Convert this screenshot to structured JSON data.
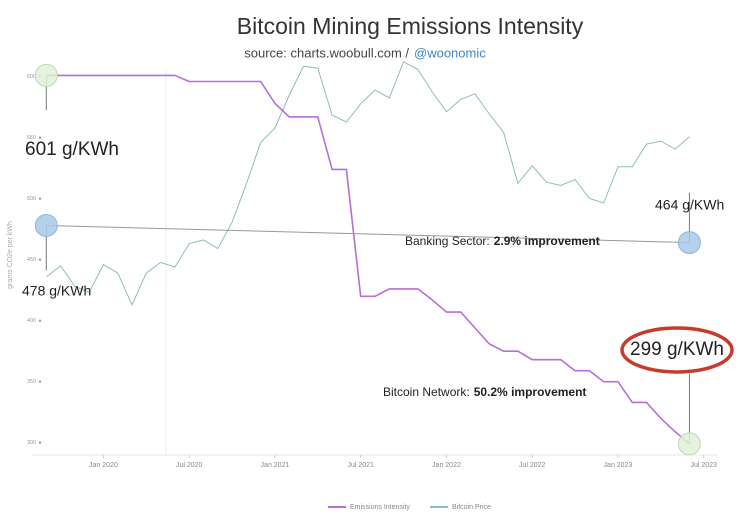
{
  "chart_data": {
    "type": "line",
    "title": "Bitcoin Mining Emissions Intensity",
    "subtitle": "source: charts.woobull.com /",
    "subtitle_handle": "@woonomic",
    "ylabel": "grams CO2e per kWh",
    "x": [
      "2019-09",
      "2019-10",
      "2019-11",
      "2019-12",
      "2020-01",
      "2020-02",
      "2020-03",
      "2020-04",
      "2020-05",
      "2020-06",
      "2020-07",
      "2020-08",
      "2020-09",
      "2020-10",
      "2020-11",
      "2020-12",
      "2021-01",
      "2021-02",
      "2021-03",
      "2021-04",
      "2021-05",
      "2021-06",
      "2021-07",
      "2021-08",
      "2021-09",
      "2021-10",
      "2021-11",
      "2021-12",
      "2022-01",
      "2022-02",
      "2022-03",
      "2022-04",
      "2022-05",
      "2022-06",
      "2022-07",
      "2022-08",
      "2022-09",
      "2022-10",
      "2022-11",
      "2022-12",
      "2023-01",
      "2023-02",
      "2023-03",
      "2023-04",
      "2023-05",
      "2023-06"
    ],
    "series": [
      {
        "name": "Emissions Intensity",
        "color": "#b56fd6",
        "values": [
          601,
          601,
          601,
          601,
          601,
          601,
          601,
          601,
          601,
          601,
          596,
          596,
          596,
          596,
          596,
          596,
          578,
          567,
          567,
          567,
          524,
          524,
          420,
          420,
          426,
          426,
          426,
          417,
          407,
          407,
          394,
          381,
          375,
          375,
          368,
          368,
          368,
          359,
          359,
          350,
          350,
          333,
          333,
          320,
          309,
          299
        ]
      },
      {
        "name": "Bitcoin Price",
        "color": "#8fbcbc",
        "axis": "y2",
        "values": [
          8300,
          9200,
          7600,
          7200,
          9300,
          8600,
          6400,
          8600,
          9500,
          9100,
          11300,
          11700,
          10800,
          13800,
          19700,
          29000,
          33100,
          45000,
          58800,
          57700,
          37300,
          35000,
          41500,
          47100,
          43800,
          61300,
          57000,
          46300,
          38500,
          43200,
          45500,
          37700,
          31800,
          19800,
          23300,
          20000,
          19400,
          20500,
          17200,
          16500,
          23100,
          23100,
          28500,
          29300,
          27200,
          30500
        ]
      }
    ],
    "xlim": [
      "2019-08",
      "2023-08"
    ],
    "xticks": [
      {
        "value": "2020-01",
        "label": "Jan 2020"
      },
      {
        "value": "2020-07",
        "label": "Jul 2020"
      },
      {
        "value": "2021-01",
        "label": "Jan 2021"
      },
      {
        "value": "2021-07",
        "label": "Jul 2021"
      },
      {
        "value": "2022-01",
        "label": "Jan 2022"
      },
      {
        "value": "2022-07",
        "label": "Jul 2022"
      },
      {
        "value": "2023-01",
        "label": "Jan 2023"
      },
      {
        "value": "2023-07",
        "label": "Jul 2023"
      }
    ],
    "ylim": [
      285,
      630
    ],
    "yticks": [
      300,
      350,
      400,
      450,
      500,
      550,
      600
    ],
    "y2lim": [
      1500,
      75000
    ],
    "y2scale": "log",
    "annotations": [
      {
        "label": "601 g/KWh",
        "value": 601,
        "x": "2019-09"
      },
      {
        "label": "478 g/KWh",
        "value": 478,
        "x": "2019-09"
      },
      {
        "label": "464 g/KWh",
        "value": 464,
        "x": "2023-06"
      },
      {
        "label": "299 g/KWh",
        "value": 299,
        "x": "2023-06"
      }
    ],
    "notes": [
      {
        "text": "Banking Sector:",
        "emphasis": "2.9% improvement"
      },
      {
        "text": "Bitcoin Network:",
        "emphasis": "50.2% improvement"
      }
    ],
    "legend": "bottom"
  }
}
